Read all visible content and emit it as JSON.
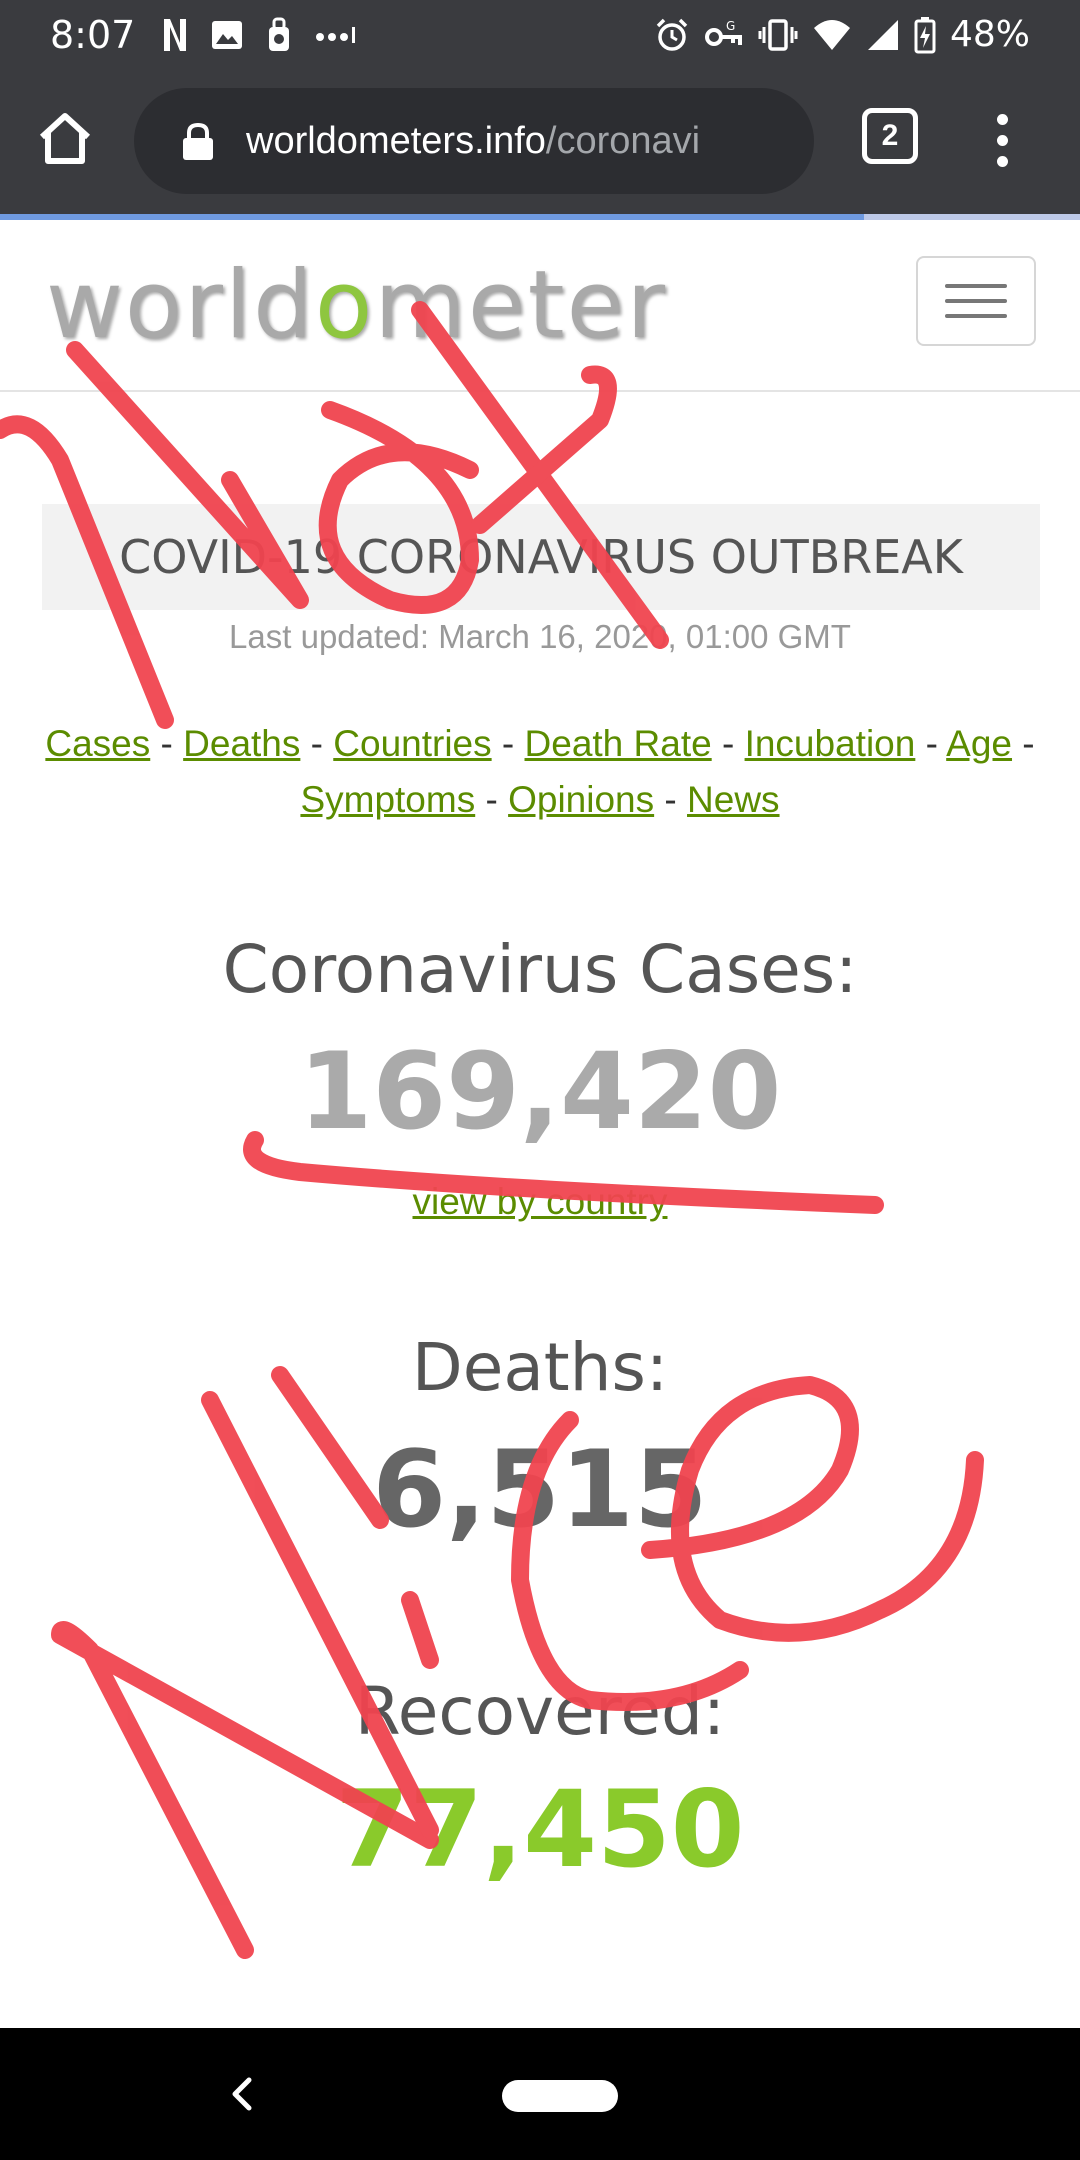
{
  "status_bar": {
    "time": "8:07",
    "battery": "48%",
    "left_icons": [
      "netflix-icon",
      "image-icon",
      "lock-app-icon",
      "more-dots-icon"
    ],
    "right_icons": [
      "alarm-icon",
      "vpn-key-icon",
      "vibrate-icon",
      "wifi-icon",
      "signal-icon",
      "battery-charging-icon"
    ]
  },
  "browser": {
    "url_domain": "worldometers.info",
    "url_path": "/coronavi",
    "tab_count": "2",
    "progress_percent": 80
  },
  "site": {
    "logo_pre": "w",
    "logo_o1": "o",
    "logo_mid": "rld",
    "logo_o2": "o",
    "logo_post": "meter"
  },
  "page": {
    "banner": "COVID-19 CORONAVIRUS OUTBREAK",
    "last_updated": "Last updated: March 16, 2020, 01:00 GMT",
    "nav_links": [
      "Cases",
      "Deaths",
      "Countries",
      "Death Rate",
      "Incubation",
      "Age",
      "Symptoms",
      "Opinions",
      "News"
    ],
    "cases_label": "Coronavirus Cases:",
    "cases_value": "169,420",
    "view_by_country": "view by country",
    "deaths_label": "Deaths:",
    "deaths_value": "6,515",
    "recovered_label": "Recovered:",
    "recovered_value": "77,450"
  },
  "colors": {
    "link_green": "#5b8c00",
    "cases_gray": "#aaaaaa",
    "deaths_gray": "#666666",
    "recovered_green": "#8aca2b",
    "annotation_red": "#f0444f"
  }
}
